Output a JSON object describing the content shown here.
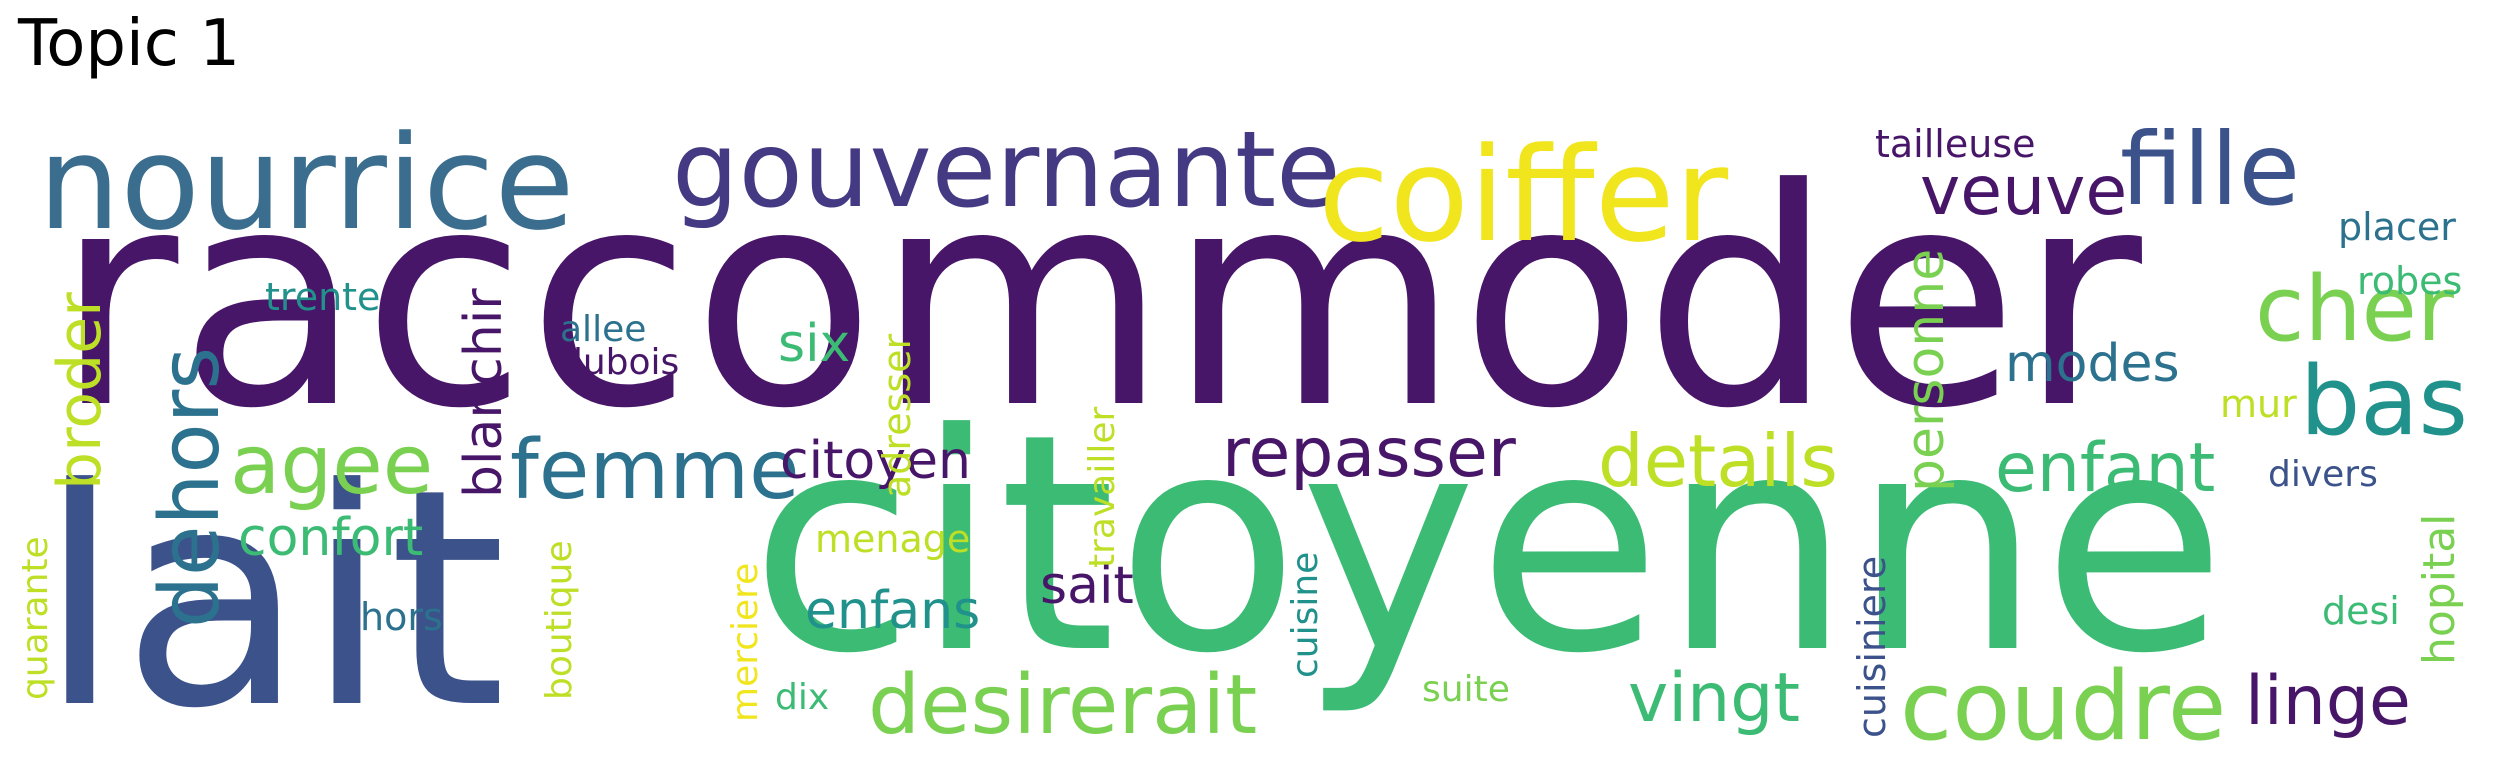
{
  "title": "Topic 1",
  "palette": {
    "dark_purple": "#481668",
    "blue": "#3b528b",
    "steel_blue": "#2c728e",
    "teal": "#21918c",
    "green": "#3cbb75",
    "light_green": "#7ad151",
    "yellow_green": "#bddf26",
    "yellow": "#f1e51d",
    "white_background": "#ffffff"
  },
  "words": {
    "raccommoder": "raccommoder",
    "citoyenne": "citoyenne",
    "lait": "lait",
    "nourrice": "nourrice",
    "coiffer": "coiffer",
    "gouvernante": "gouvernante",
    "fille": "fille",
    "veuve": "veuve",
    "cher": "cher",
    "bas": "bas",
    "dehors": "dehors",
    "agee": "agee",
    "femme": "femme",
    "repasser": "repasser",
    "details": "details",
    "enfant": "enfant",
    "desirerait": "desirerait",
    "coudre": "coudre",
    "linge": "linge",
    "vingt": "vingt",
    "enfans": "enfans",
    "sait": "sait",
    "citoyen": "citoyen",
    "broder": "broder",
    "blanchir": "blanchir",
    "confort": "confort",
    "six": "six",
    "modes": "modes",
    "personne": "personne",
    "trente": "trente",
    "allee": "allee",
    "dubois": "dubois",
    "adresser": "adresser",
    "travailler": "travailler",
    "tailleuse": "tailleuse",
    "placer": "placer",
    "robes": "robes",
    "mur": "mur",
    "divers": "divers",
    "hopital": "hopital",
    "desi": "desi",
    "cuisiniere": "cuisiniere",
    "cuisine": "cuisine",
    "menage": "menage",
    "merciere": "merciere",
    "boutique": "boutique",
    "quarante": "quarante",
    "hors": "hors",
    "dix": "dix",
    "suite": "suite"
  }
}
